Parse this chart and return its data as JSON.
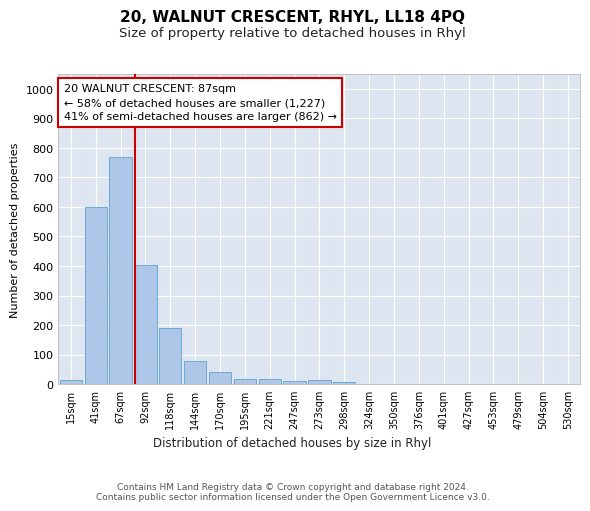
{
  "title1": "20, WALNUT CRESCENT, RHYL, LL18 4PQ",
  "title2": "Size of property relative to detached houses in Rhyl",
  "xlabel": "Distribution of detached houses by size in Rhyl",
  "ylabel": "Number of detached properties",
  "bar_labels": [
    "15sqm",
    "41sqm",
    "67sqm",
    "92sqm",
    "118sqm",
    "144sqm",
    "170sqm",
    "195sqm",
    "221sqm",
    "247sqm",
    "273sqm",
    "298sqm",
    "324sqm",
    "350sqm",
    "376sqm",
    "401sqm",
    "427sqm",
    "453sqm",
    "479sqm",
    "504sqm",
    "530sqm"
  ],
  "bar_values": [
    15,
    600,
    770,
    405,
    190,
    78,
    40,
    18,
    17,
    12,
    15,
    8,
    0,
    0,
    0,
    0,
    0,
    0,
    0,
    0,
    0
  ],
  "bar_color": "#aec6e8",
  "bar_edge_color": "#6aaad4",
  "vline_color": "#cc0000",
  "vline_pos": 2.57,
  "annotation_text": "20 WALNUT CRESCENT: 87sqm\n← 58% of detached houses are smaller (1,227)\n41% of semi-detached houses are larger (862) →",
  "annotation_box_color": "#ffffff",
  "annotation_box_edge": "#cc0000",
  "ylim": [
    0,
    1050
  ],
  "yticks": [
    0,
    100,
    200,
    300,
    400,
    500,
    600,
    700,
    800,
    900,
    1000
  ],
  "background_color": "#dde6f0",
  "footer_text": "Contains HM Land Registry data © Crown copyright and database right 2024.\nContains public sector information licensed under the Open Government Licence v3.0.",
  "title1_fontsize": 11,
  "title2_fontsize": 9.5
}
